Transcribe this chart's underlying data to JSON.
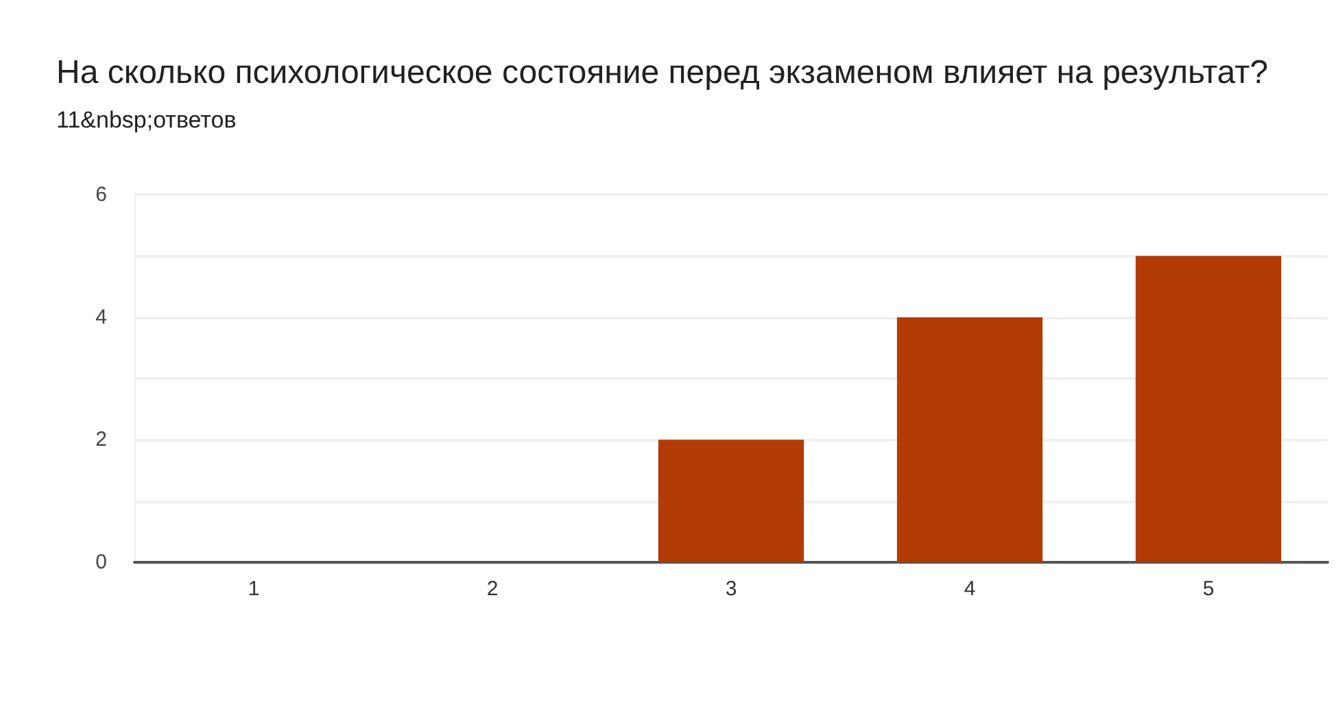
{
  "chart_data": {
    "type": "bar",
    "title": "На сколько психологическое состояние перед экзаменом влияет на результат?",
    "subtitle": "11&nbsp;ответов",
    "categories": [
      "1",
      "2",
      "3",
      "4",
      "5"
    ],
    "values": [
      0,
      0,
      2,
      4,
      5
    ],
    "color": "#b23b05",
    "ylim": [
      0,
      6
    ],
    "yticks": [
      0,
      {
        "value": 1,
        "label": null
      },
      2,
      {
        "value": 3,
        "label": null
      },
      4,
      {
        "value": 5,
        "label": null
      },
      6
    ],
    "grid": "y"
  }
}
